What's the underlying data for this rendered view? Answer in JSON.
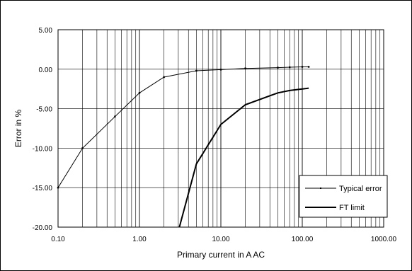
{
  "chart_data": {
    "type": "line",
    "x_scale": "log",
    "xlabel": "Primary current in A AC",
    "ylabel": "Error in %",
    "xlim": [
      0.1,
      1000
    ],
    "ylim": [
      -20,
      5
    ],
    "x_ticks": [
      "0.10",
      "1.00",
      "10.00",
      "100.00",
      "1000.00"
    ],
    "y_ticks": [
      "5.00",
      "0.00",
      "-5.00",
      "-10.00",
      "-15.00",
      "-20.00"
    ],
    "grid": true,
    "legend_position": "bottom-right",
    "series": [
      {
        "name": "Typical error",
        "color": "#000000",
        "style": "thin line with point markers",
        "x": [
          0.1,
          0.2,
          0.5,
          1,
          2,
          5,
          10,
          20,
          50,
          70,
          100,
          120
        ],
        "y": [
          -15,
          -10,
          -6,
          -3,
          -1,
          -0.2,
          -0.05,
          0.1,
          0.2,
          0.25,
          0.3,
          0.3
        ]
      },
      {
        "name": "FT limit",
        "color": "#000000",
        "style": "thick line",
        "x": [
          3,
          5,
          10,
          20,
          50,
          70,
          100,
          120
        ],
        "y": [
          -20.5,
          -12,
          -7,
          -4.5,
          -3,
          -2.7,
          -2.5,
          -2.4
        ]
      }
    ]
  }
}
